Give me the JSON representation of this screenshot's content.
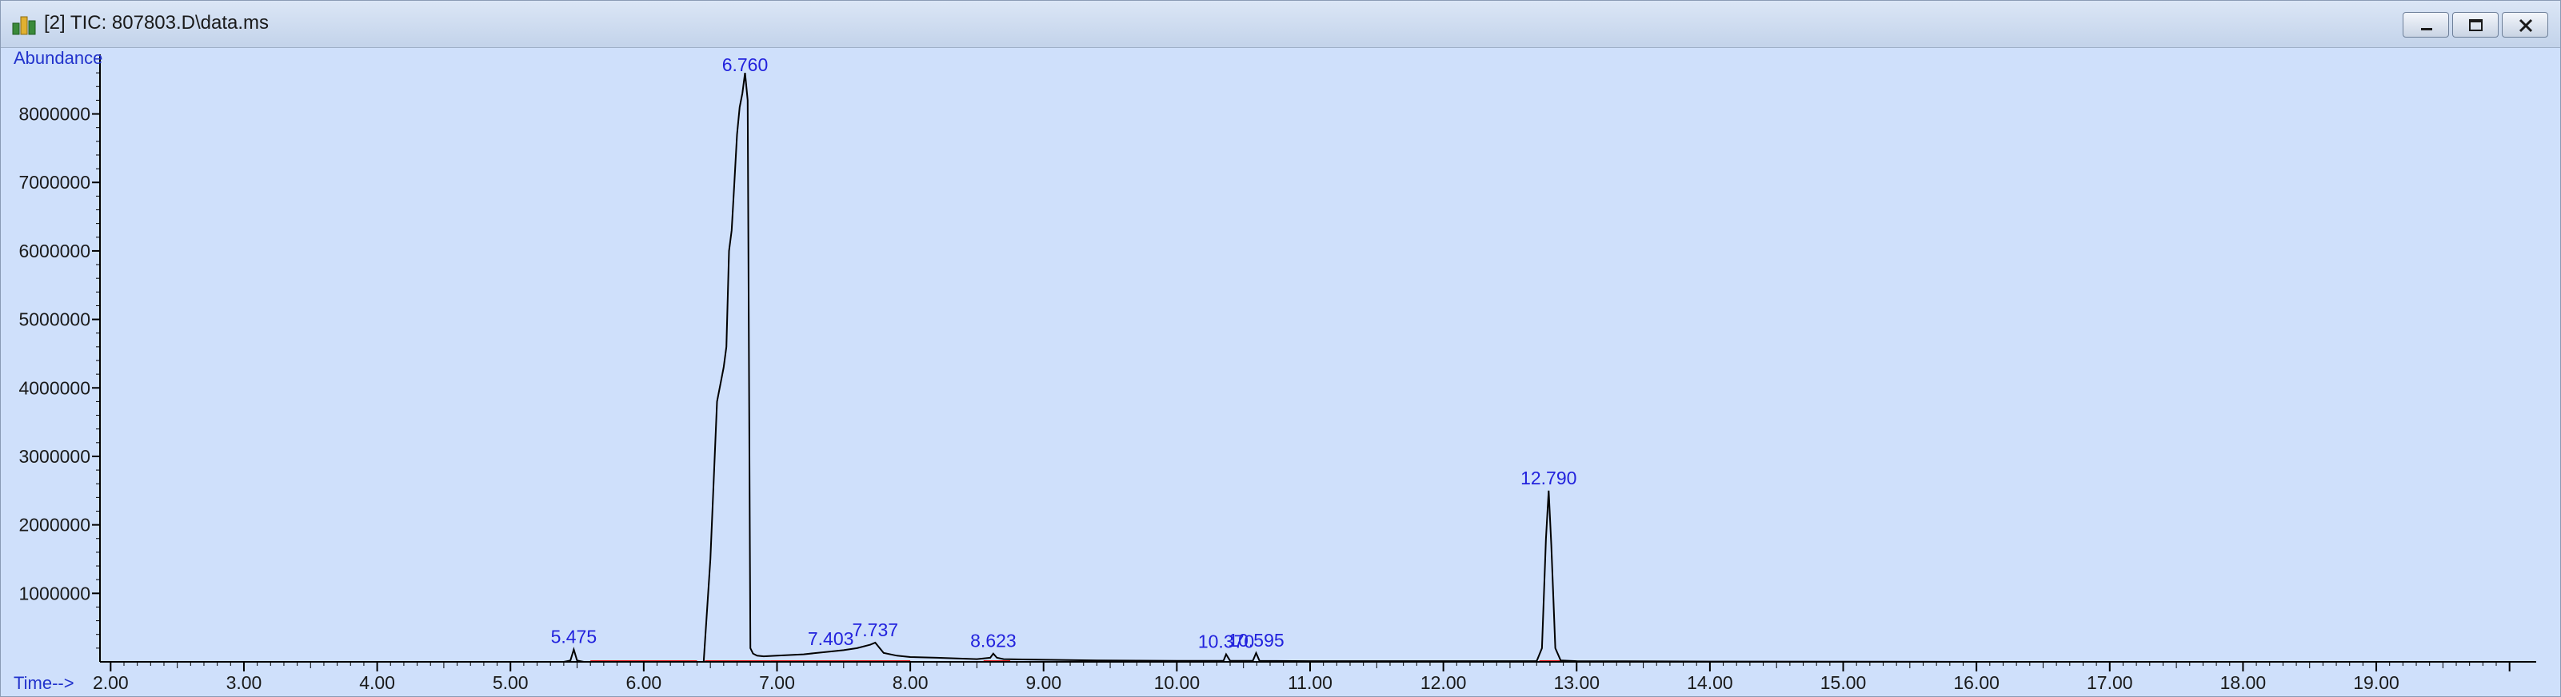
{
  "window": {
    "title": "[2] TIC: 807803.D\\data.ms",
    "icon": "chromatogram-app-icon",
    "buttons": [
      "minimize",
      "maximize",
      "close"
    ]
  },
  "colors": {
    "plot_background": "#cfe0fb",
    "trace": "#000000",
    "baseline": "#e02020",
    "labels": "#2222dd"
  },
  "chart_data": {
    "type": "line",
    "title": "",
    "xlabel": "Time-->",
    "ylabel": "Abundance",
    "xlim": [
      1.92,
      20.2
    ],
    "ylim": [
      0,
      8800000
    ],
    "x_ticks": [
      "2.00",
      "3.00",
      "4.00",
      "5.00",
      "6.00",
      "7.00",
      "8.00",
      "9.00",
      "10.00",
      "11.00",
      "12.00",
      "13.00",
      "14.00",
      "15.00",
      "16.00",
      "17.00",
      "18.00",
      "19.00"
    ],
    "y_ticks": [
      "1000000",
      "2000000",
      "3000000",
      "4000000",
      "5000000",
      "6000000",
      "7000000",
      "8000000"
    ],
    "grid": false,
    "peaks": [
      {
        "rt": "5.475",
        "time": 5.475,
        "abundance": 180000
      },
      {
        "rt": "6.760",
        "time": 6.76,
        "abundance": 8600000
      },
      {
        "rt": "7.403",
        "time": 7.403,
        "abundance": 150000
      },
      {
        "rt": "7.737",
        "time": 7.737,
        "abundance": 280000
      },
      {
        "rt": "8.623",
        "time": 8.623,
        "abundance": 120000
      },
      {
        "rt": "10.370",
        "time": 10.37,
        "abundance": 110000
      },
      {
        "rt": "10.595",
        "time": 10.595,
        "abundance": 130000
      },
      {
        "rt": "12.790",
        "time": 12.79,
        "abundance": 2500000
      }
    ],
    "series": [
      {
        "x": [
          2.0,
          5.4,
          5.45,
          5.475,
          5.5,
          5.55,
          6.45,
          6.5,
          6.55,
          6.6,
          6.62,
          6.64,
          6.66,
          6.68,
          6.7,
          6.72,
          6.74,
          6.76,
          6.78,
          6.8,
          6.82,
          6.85,
          6.9,
          7.0,
          7.2,
          7.4,
          7.5,
          7.6,
          7.7,
          7.737,
          7.8,
          7.9,
          8.0,
          8.2,
          8.5,
          8.6,
          8.623,
          8.65,
          8.7,
          9.0,
          9.4,
          10.0,
          10.35,
          10.37,
          10.4,
          10.57,
          10.595,
          10.62,
          11.0,
          12.0,
          12.7,
          12.74,
          12.77,
          12.79,
          12.81,
          12.84,
          12.88,
          13.0,
          14.0,
          15.0,
          16.0,
          17.0,
          18.0,
          19.0,
          20.0
        ],
        "y": [
          0,
          0,
          20000,
          180000,
          20000,
          0,
          0,
          1500000,
          3800000,
          4300000,
          4600000,
          6000000,
          6300000,
          7000000,
          7700000,
          8100000,
          8300000,
          8600000,
          8200000,
          200000,
          120000,
          90000,
          80000,
          90000,
          110000,
          150000,
          170000,
          200000,
          250000,
          280000,
          130000,
          90000,
          70000,
          60000,
          40000,
          60000,
          120000,
          60000,
          40000,
          30000,
          20000,
          15000,
          15000,
          110000,
          15000,
          15000,
          130000,
          15000,
          10000,
          10000,
          10000,
          200000,
          1800000,
          2500000,
          1700000,
          200000,
          20000,
          10000,
          5000,
          3000,
          0,
          0,
          0,
          0,
          0
        ]
      }
    ]
  }
}
